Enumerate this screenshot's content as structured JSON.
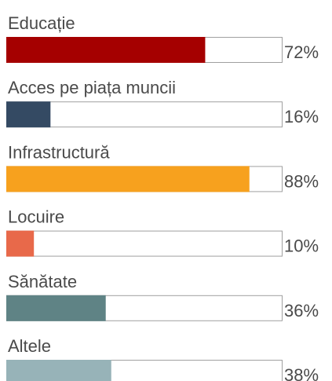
{
  "chart_data": {
    "type": "bar",
    "categories": [
      "Educație",
      "Acces pe piața muncii",
      "Infrastructură",
      "Locuire",
      "Sănătate",
      "Altele"
    ],
    "values": [
      72,
      16,
      88,
      10,
      36,
      38
    ],
    "value_labels": [
      "72%",
      "16%",
      "88%",
      "10%",
      "36%",
      "38%"
    ],
    "colors": [
      "#a50000",
      "#344a63",
      "#f7a11e",
      "#e8694a",
      "#5f8385",
      "#97b3b8"
    ],
    "xlim": [
      0,
      100
    ]
  }
}
